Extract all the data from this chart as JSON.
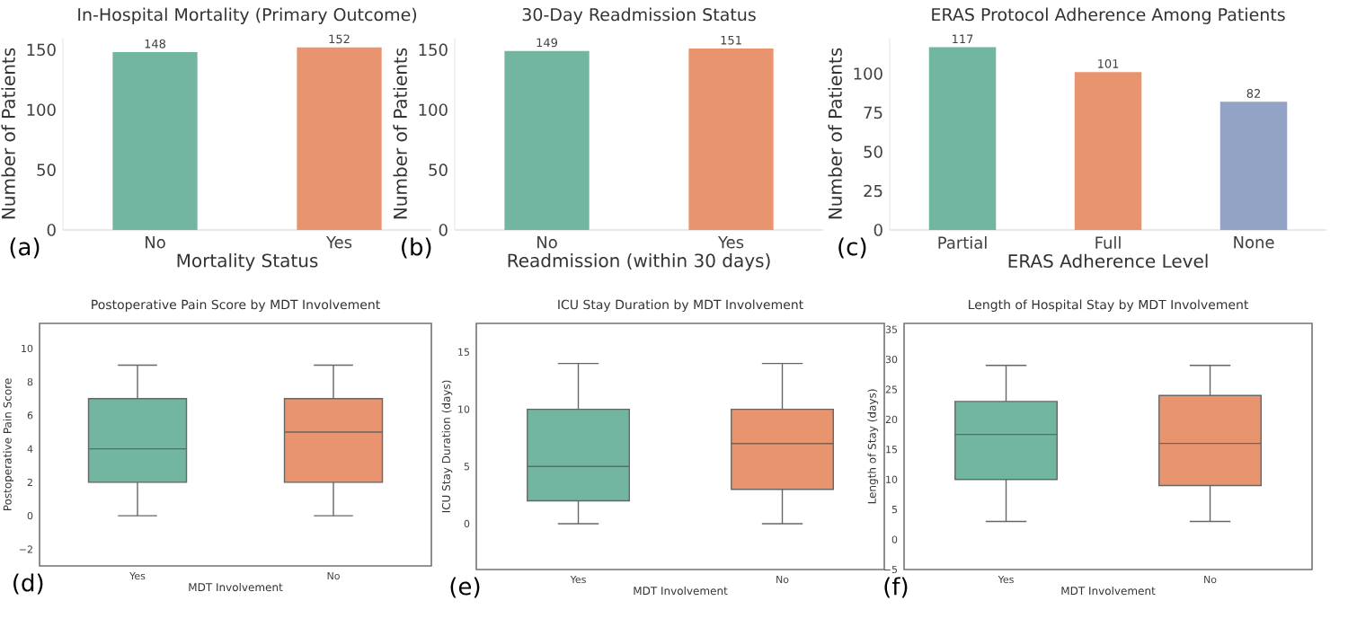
{
  "chart_data": [
    {
      "type": "bar",
      "title": "In-Hospital Mortality (Primary Outcome)",
      "xlabel": "Mortality Status",
      "ylabel": "Number of Patients",
      "categories": [
        "No",
        "Yes"
      ],
      "values": [
        148,
        152
      ],
      "colors": [
        "#72b6a1",
        "#e8956f"
      ],
      "ylim": [
        0,
        160
      ],
      "yticks": [
        0,
        50,
        100,
        150
      ],
      "data_labels": true,
      "annotations": [
        "(a)"
      ]
    },
    {
      "type": "bar",
      "title": "30-Day Readmission Status",
      "xlabel": "Readmission (within 30 days)",
      "ylabel": "Number of Patients",
      "categories": [
        "No",
        "Yes"
      ],
      "values": [
        149,
        151
      ],
      "colors": [
        "#72b6a1",
        "#e8956f"
      ],
      "ylim": [
        0,
        160
      ],
      "yticks": [
        0,
        50,
        100,
        150
      ],
      "data_labels": true,
      "annotations": [
        "(b)"
      ]
    },
    {
      "type": "bar",
      "title": "ERAS Protocol Adherence Among Patients",
      "xlabel": "ERAS Adherence Level",
      "ylabel": "Number of Patients",
      "categories": [
        "Partial",
        "Full",
        "None"
      ],
      "values": [
        117,
        101,
        82
      ],
      "colors": [
        "#72b6a1",
        "#e8956f",
        "#93a3c5"
      ],
      "ylim": [
        0,
        123
      ],
      "yticks": [
        0,
        25,
        50,
        75,
        100
      ],
      "data_labels": true,
      "annotations": [
        "(c)"
      ]
    },
    {
      "type": "box",
      "title": "Postoperative Pain Score by MDT Involvement",
      "xlabel": "MDT Involvement",
      "ylabel": "Postoperative Pain Score",
      "categories": [
        "Yes",
        "No"
      ],
      "colors": [
        "#72b6a1",
        "#e8956f"
      ],
      "boxes": [
        {
          "low": 0,
          "q1": 2,
          "median": 4,
          "q3": 7,
          "high": 9
        },
        {
          "low": 0,
          "q1": 2,
          "median": 5,
          "q3": 7,
          "high": 9
        }
      ],
      "ylim": [
        -3,
        11.5
      ],
      "yticks": [
        {
          "value": -2,
          "label": "−2"
        },
        0,
        2,
        4,
        6,
        8,
        10
      ],
      "annotations": [
        "(d)"
      ]
    },
    {
      "type": "box",
      "title": "ICU Stay Duration by MDT Involvement",
      "xlabel": "MDT Involvement",
      "ylabel": "ICU Stay Duration (days)",
      "categories": [
        "Yes",
        "No"
      ],
      "colors": [
        "#72b6a1",
        "#e8956f"
      ],
      "boxes": [
        {
          "low": 0,
          "q1": 2,
          "median": 5,
          "q3": 10,
          "high": 14
        },
        {
          "low": 0,
          "q1": 3,
          "median": 7,
          "q3": 10,
          "high": 14
        }
      ],
      "ylim": [
        -4,
        17.5
      ],
      "yticks": [
        0,
        5,
        10,
        15
      ],
      "annotations": [
        "(e)"
      ]
    },
    {
      "type": "box",
      "title": "Length of Hospital Stay by MDT Involvement",
      "xlabel": "MDT Involvement",
      "ylabel": "Length of Stay (days)",
      "categories": [
        "Yes",
        "No"
      ],
      "colors": [
        "#72b6a1",
        "#e8956f"
      ],
      "boxes": [
        {
          "low": 3,
          "q1": 10,
          "median": 17.5,
          "q3": 23,
          "high": 29
        },
        {
          "low": 3,
          "q1": 9,
          "median": 16,
          "q3": 24,
          "high": 29
        }
      ],
      "ylim": [
        -5,
        36
      ],
      "yticks": [
        {
          "value": -5,
          "label": "−5"
        },
        0,
        5,
        10,
        15,
        20,
        25,
        30,
        35
      ],
      "annotations": [
        "(f)"
      ]
    }
  ]
}
